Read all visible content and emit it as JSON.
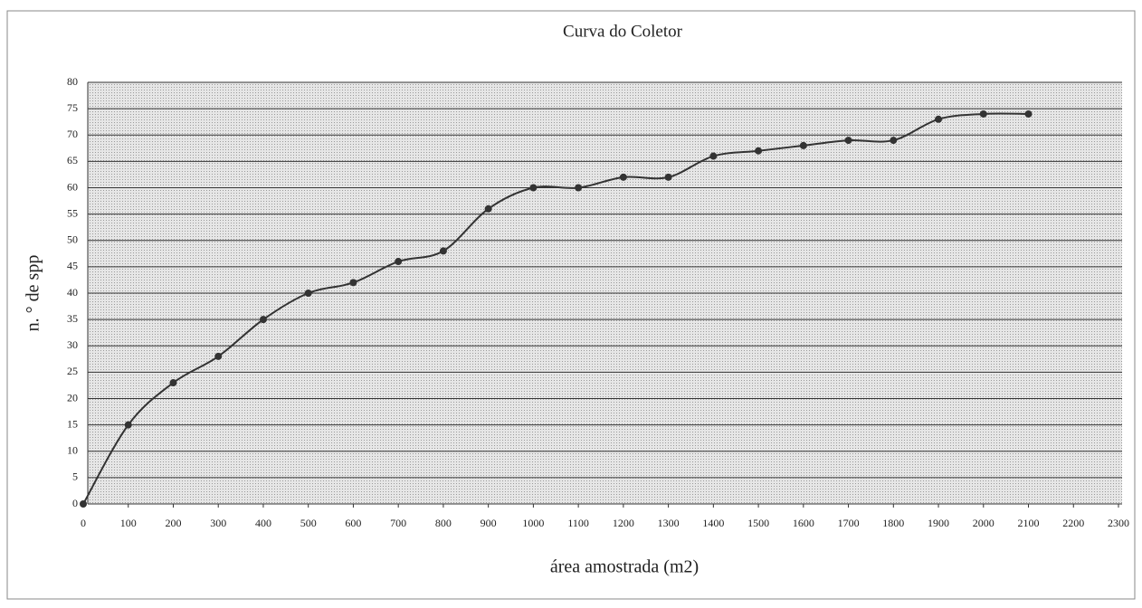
{
  "chart_data": {
    "type": "line",
    "title": "Curva do Coletor",
    "x_label": "área amostrada (m2)",
    "y_label": "n. ° de spp",
    "x": [
      0,
      100,
      200,
      300,
      400,
      500,
      600,
      700,
      800,
      900,
      1000,
      1100,
      1200,
      1300,
      1400,
      1500,
      1600,
      1700,
      1800,
      1900,
      2000,
      2100
    ],
    "series": [
      {
        "name": "spp",
        "color": "#333333",
        "values": [
          0,
          15,
          23,
          28,
          35,
          40,
          42,
          46,
          48,
          56,
          60,
          60,
          62,
          62,
          66,
          67,
          68,
          69,
          69,
          73,
          74,
          74
        ]
      }
    ],
    "xlim": [
      0,
      2300
    ],
    "xticks": [
      0,
      100,
      200,
      300,
      400,
      500,
      600,
      700,
      800,
      900,
      1000,
      1100,
      1200,
      1300,
      1400,
      1500,
      1600,
      1700,
      1800,
      1900,
      2000,
      2100,
      2200,
      2300
    ],
    "ylim": [
      0,
      80
    ],
    "yticks": [
      0,
      5,
      10,
      15,
      20,
      25,
      30,
      35,
      40,
      45,
      50,
      55,
      60,
      65,
      70,
      75,
      80
    ],
    "grid": true
  }
}
